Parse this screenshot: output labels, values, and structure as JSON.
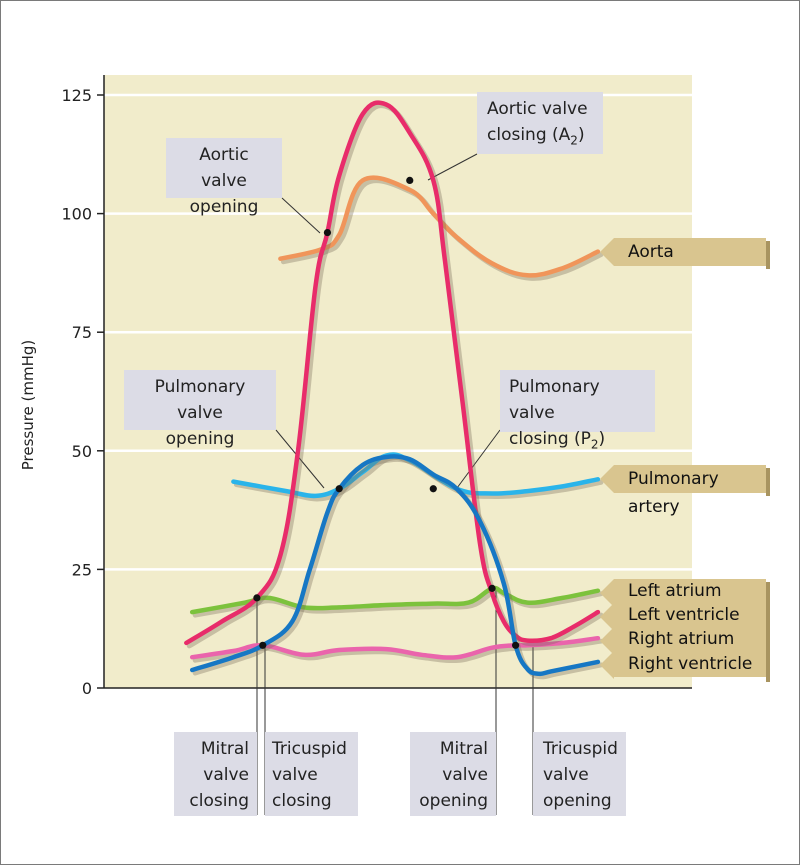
{
  "chart_data": {
    "type": "line",
    "ylabel": "Pressure (mmHg)",
    "xlabel": "",
    "ylim": [
      0,
      125
    ],
    "yticks": [
      0,
      25,
      50,
      75,
      100,
      125
    ],
    "grid": true,
    "legend_placement": "right",
    "x_units": "normalized time",
    "series": [
      {
        "name": "Aorta",
        "color": "#f0955a",
        "x": [
          0.3,
          0.37,
          0.4,
          0.44,
          0.52,
          0.56,
          0.6,
          0.66,
          0.72,
          0.78,
          0.84
        ],
        "y": [
          90.5,
          92.5,
          95.5,
          107,
          105,
          100,
          95,
          89.5,
          87,
          88.5,
          92
        ]
      },
      {
        "name": "Pulmonary artery",
        "color": "#2ab4ea",
        "x": [
          0.22,
          0.31,
          0.36,
          0.4,
          0.44,
          0.48,
          0.52,
          0.6,
          0.66,
          0.72,
          0.78,
          0.84
        ],
        "y": [
          43.5,
          41.5,
          40.5,
          42,
          45.5,
          49,
          48,
          42,
          41,
          41.5,
          42.5,
          44
        ]
      },
      {
        "name": "Left atrium",
        "color": "#7cc23c",
        "x": [
          0.15,
          0.24,
          0.28,
          0.34,
          0.4,
          0.48,
          0.56,
          0.62,
          0.66,
          0.68,
          0.72,
          0.78,
          0.84
        ],
        "y": [
          16,
          18,
          19,
          17,
          17,
          17.5,
          17.8,
          18,
          21,
          20,
          18,
          19,
          20.5
        ]
      },
      {
        "name": "Left ventricle",
        "color": "#e82c6a",
        "x": [
          0.14,
          0.2,
          0.26,
          0.3,
          0.33,
          0.36,
          0.38,
          0.4,
          0.44,
          0.48,
          0.52,
          0.56,
          0.58,
          0.61,
          0.64,
          0.66,
          0.68,
          0.7,
          0.72,
          0.76,
          0.8,
          0.84
        ],
        "y": [
          9.5,
          14,
          19,
          28,
          50,
          85,
          96,
          108,
          121,
          123,
          117,
          107,
          90,
          60,
          30,
          20,
          14,
          11,
          10,
          10.5,
          13,
          16
        ]
      },
      {
        "name": "Right atrium",
        "color": "#ea64ac",
        "x": [
          0.15,
          0.22,
          0.27,
          0.34,
          0.4,
          0.48,
          0.54,
          0.6,
          0.66,
          0.7,
          0.72,
          0.78,
          0.84
        ],
        "y": [
          6.5,
          7.8,
          9,
          7,
          8,
          8.2,
          7,
          6.5,
          8.5,
          9,
          9,
          9.5,
          10.5
        ]
      },
      {
        "name": "Right ventricle",
        "color": "#1677c4",
        "x": [
          0.15,
          0.22,
          0.27,
          0.32,
          0.35,
          0.38,
          0.4,
          0.44,
          0.48,
          0.52,
          0.56,
          0.6,
          0.64,
          0.68,
          0.7,
          0.72,
          0.74,
          0.76,
          0.8,
          0.84
        ],
        "y": [
          3.8,
          6.5,
          9,
          14,
          25,
          37,
          42,
          47,
          48.7,
          48.2,
          45,
          42,
          35,
          22,
          9,
          4,
          3,
          3.5,
          4.5,
          5.5
        ]
      }
    ],
    "events": [
      {
        "x": 0.38,
        "y": 96
      },
      {
        "x": 0.52,
        "y": 107
      },
      {
        "x": 0.4,
        "y": 42
      },
      {
        "x": 0.56,
        "y": 42
      },
      {
        "x": 0.26,
        "y": 19
      },
      {
        "x": 0.27,
        "y": 9
      },
      {
        "x": 0.66,
        "y": 21
      },
      {
        "x": 0.7,
        "y": 9
      }
    ]
  },
  "annotations": {
    "aortic_open": [
      "Aortic valve",
      "opening"
    ],
    "aortic_close_line1": "Aortic valve",
    "aortic_close_line2_main": "closing (A",
    "aortic_close_sub": "2",
    "aortic_close_line2_end": ")",
    "pulm_open": [
      "Pulmonary valve",
      "opening"
    ],
    "pulm_close_line1": "Pulmonary valve",
    "pulm_close_line2_main": "closing (P",
    "pulm_close_sub": "2",
    "pulm_close_line2_end": ")",
    "mitral_closing": [
      "Mitral",
      "valve",
      "closing"
    ],
    "tricuspid_closing": [
      "Tricuspid",
      "valve",
      "closing"
    ],
    "mitral_opening": [
      "Mitral",
      "valve",
      "opening"
    ],
    "tricuspid_opening": [
      "Tricuspid",
      "valve",
      "opening"
    ]
  },
  "series_labels": {
    "aorta": "Aorta",
    "pulmonary_artery": "Pulmonary artery",
    "left_atrium": "Left atrium",
    "left_ventricle": "Left ventricle",
    "right_atrium": "Right atrium",
    "right_ventricle": "Right ventricle"
  },
  "colors": {
    "plot_background": "#f1eccb",
    "annotation_box": "#dcdce6",
    "series_tag": "#d9c58f"
  }
}
